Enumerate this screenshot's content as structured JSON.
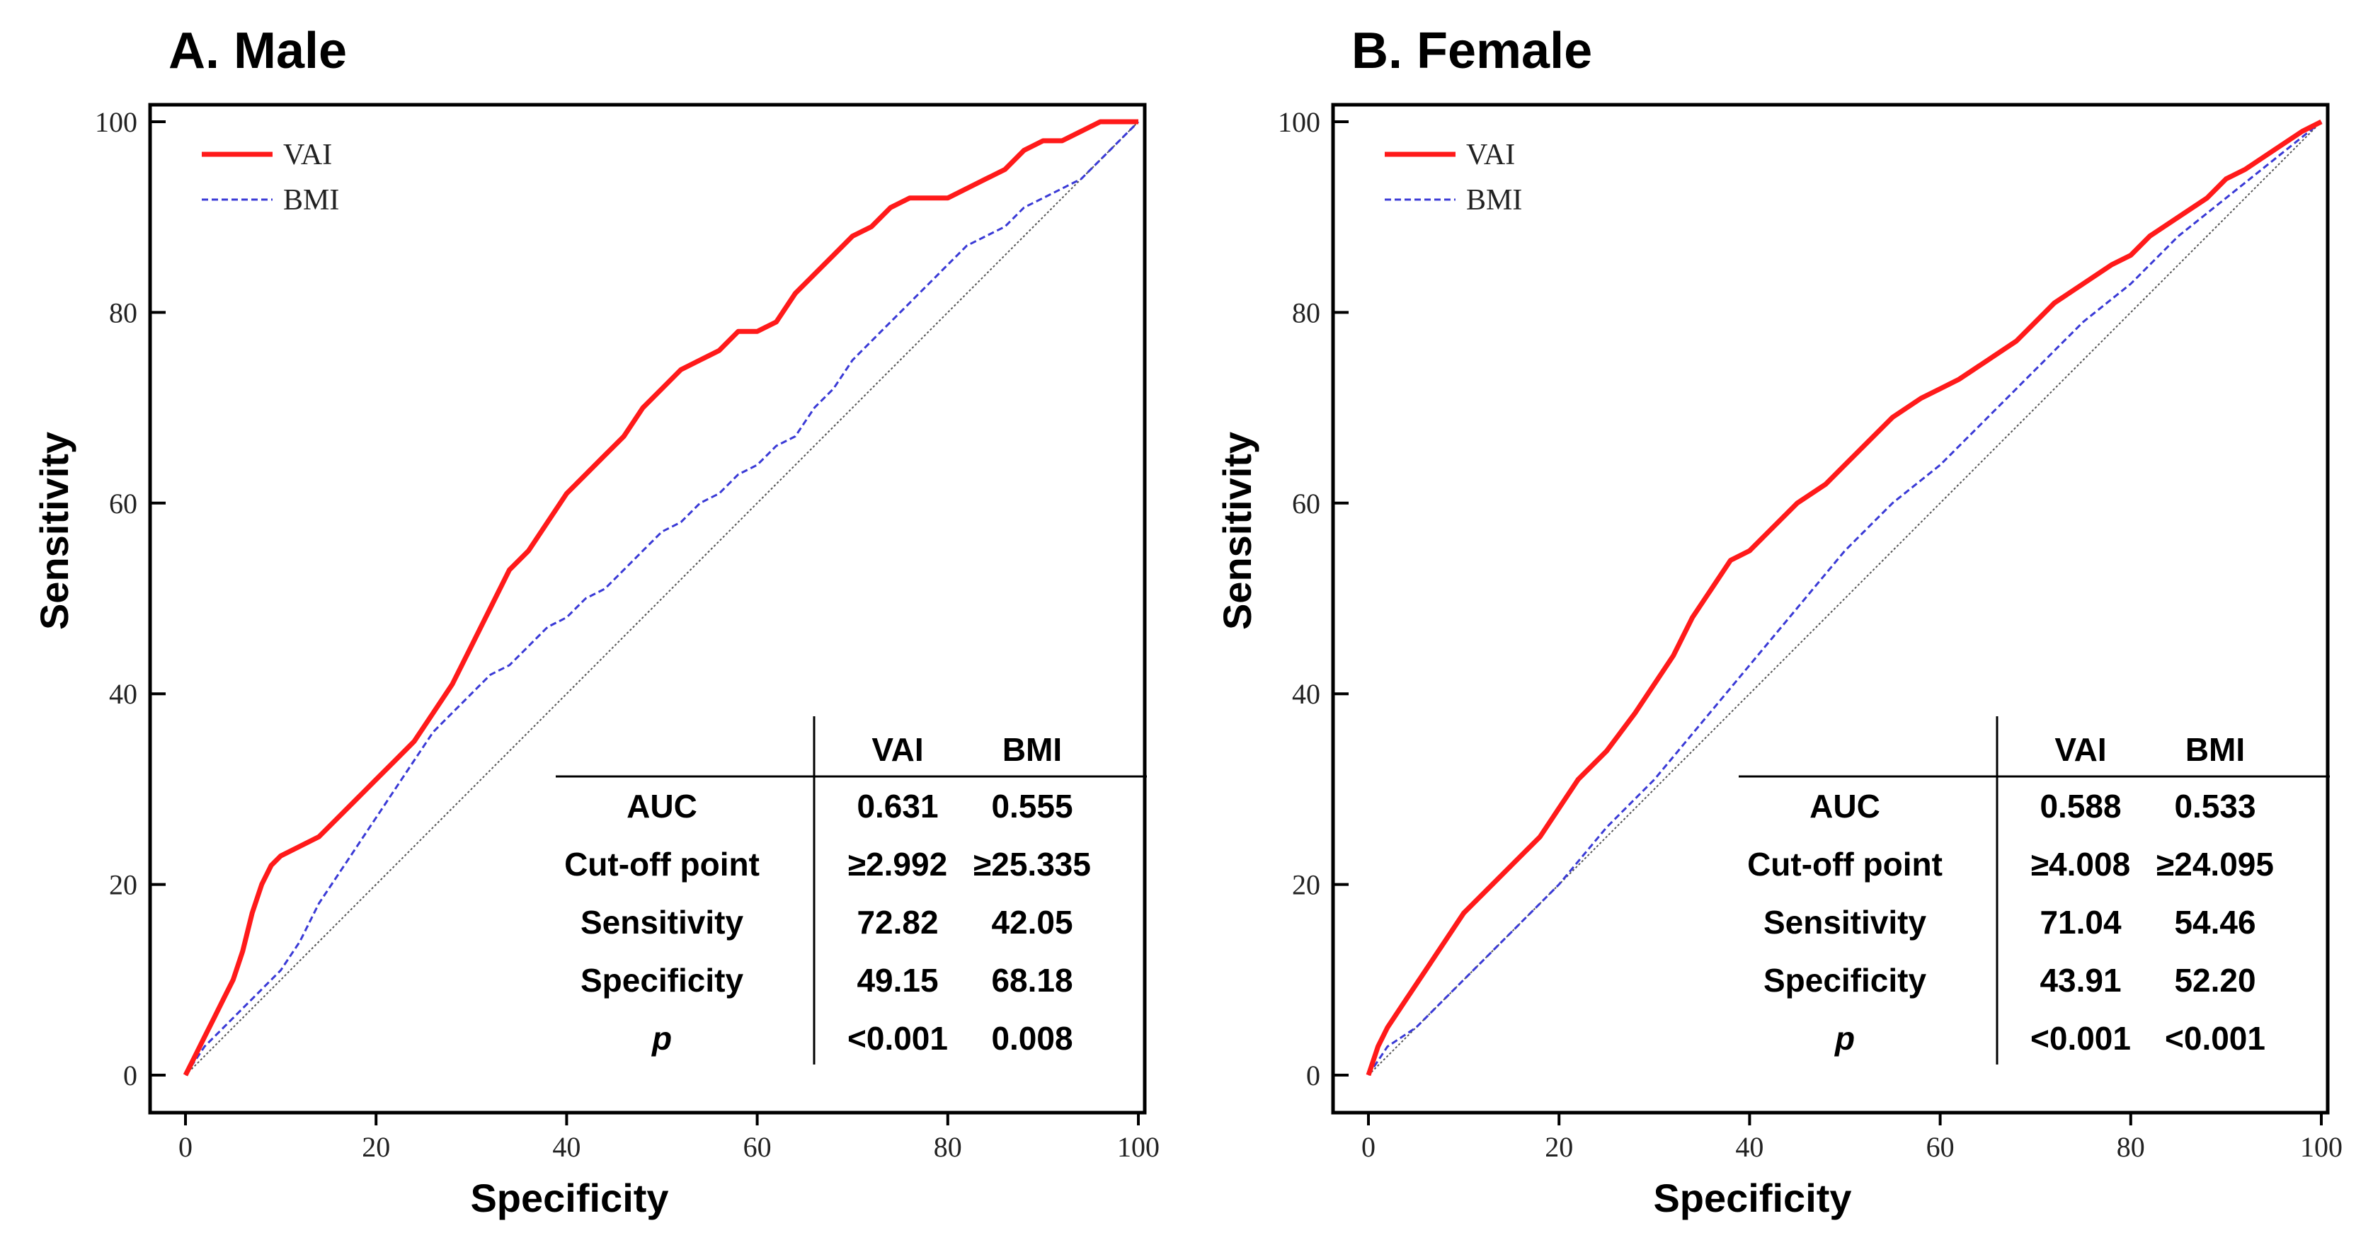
{
  "chart_data": [
    {
      "type": "line",
      "panel_label": "A. Male",
      "xlabel": "Specificity",
      "ylabel": "Sensitivity",
      "xlim": [
        0,
        100
      ],
      "ylim": [
        0,
        100
      ],
      "x_ticks": [
        "0",
        "20",
        "40",
        "60",
        "80",
        "100"
      ],
      "y_ticks": [
        "0",
        "20",
        "40",
        "60",
        "80",
        "100"
      ],
      "grid": false,
      "legend_position": "top-left",
      "reference_line": {
        "name": "chance",
        "x": [
          0,
          100
        ],
        "y": [
          0,
          100
        ]
      },
      "series": [
        {
          "name": "VAI",
          "color": "#ff1a1a",
          "style": "solid",
          "x": [
            0,
            1,
            2,
            3,
            4,
            5,
            6,
            7,
            8,
            9,
            10,
            12,
            14,
            16,
            18,
            20,
            22,
            24,
            26,
            28,
            30,
            32,
            34,
            36,
            38,
            40,
            42,
            44,
            46,
            48,
            50,
            52,
            54,
            56,
            58,
            60,
            62,
            64,
            66,
            68,
            70,
            72,
            74,
            76,
            78,
            80,
            82,
            84,
            86,
            88,
            90,
            92,
            94,
            96,
            98,
            100
          ],
          "y": [
            0,
            2,
            4,
            6,
            8,
            10,
            13,
            17,
            20,
            22,
            23,
            24,
            25,
            27,
            29,
            31,
            33,
            35,
            38,
            41,
            45,
            49,
            53,
            55,
            58,
            61,
            63,
            65,
            67,
            70,
            72,
            74,
            75,
            76,
            78,
            78,
            79,
            82,
            84,
            86,
            88,
            89,
            91,
            92,
            92,
            92,
            93,
            94,
            95,
            97,
            98,
            98,
            99,
            100,
            100,
            100
          ]
        },
        {
          "name": "BMI",
          "color": "#3a3ad6",
          "style": "dashed",
          "x": [
            0,
            2,
            4,
            6,
            8,
            10,
            12,
            14,
            16,
            18,
            20,
            22,
            24,
            26,
            28,
            30,
            32,
            34,
            36,
            38,
            40,
            42,
            44,
            46,
            48,
            50,
            52,
            54,
            56,
            58,
            60,
            62,
            64,
            66,
            68,
            70,
            72,
            74,
            76,
            78,
            80,
            82,
            84,
            86,
            88,
            90,
            92,
            94,
            96,
            98,
            100
          ],
          "y": [
            0,
            3,
            5,
            7,
            9,
            11,
            14,
            18,
            21,
            24,
            27,
            30,
            33,
            36,
            38,
            40,
            42,
            43,
            45,
            47,
            48,
            50,
            51,
            53,
            55,
            57,
            58,
            60,
            61,
            63,
            64,
            66,
            67,
            70,
            72,
            75,
            77,
            79,
            81,
            83,
            85,
            87,
            88,
            89,
            91,
            92,
            93,
            94,
            96,
            98,
            100
          ]
        }
      ],
      "stats_table": {
        "columns": [
          "",
          "VAI",
          "BMI"
        ],
        "rows": [
          {
            "label": "AUC",
            "vai": "0.631",
            "bmi": "0.555"
          },
          {
            "label": "Cut-off point",
            "vai": "≥2.992",
            "bmi": "≥25.335"
          },
          {
            "label": "Sensitivity",
            "vai": "72.82",
            "bmi": "42.05"
          },
          {
            "label": "Specificity",
            "vai": "49.15",
            "bmi": "68.18"
          },
          {
            "label": "p",
            "vai": "<0.001",
            "bmi": "0.008"
          }
        ]
      }
    },
    {
      "type": "line",
      "panel_label": "B. Female",
      "xlabel": "Specificity",
      "ylabel": "Sensitivity",
      "xlim": [
        0,
        100
      ],
      "ylim": [
        0,
        100
      ],
      "x_ticks": [
        "0",
        "20",
        "40",
        "60",
        "80",
        "100"
      ],
      "y_ticks": [
        "0",
        "20",
        "40",
        "60",
        "80",
        "100"
      ],
      "grid": false,
      "legend_position": "top-left",
      "reference_line": {
        "name": "chance",
        "x": [
          0,
          100
        ],
        "y": [
          0,
          100
        ]
      },
      "series": [
        {
          "name": "VAI",
          "color": "#ff1a1a",
          "style": "solid",
          "x": [
            0,
            1,
            2,
            4,
            6,
            8,
            10,
            12,
            15,
            18,
            20,
            22,
            25,
            28,
            30,
            32,
            34,
            36,
            38,
            40,
            42,
            45,
            48,
            50,
            52,
            55,
            58,
            60,
            62,
            65,
            68,
            70,
            72,
            75,
            78,
            80,
            82,
            85,
            88,
            90,
            92,
            95,
            98,
            100
          ],
          "y": [
            0,
            3,
            5,
            8,
            11,
            14,
            17,
            19,
            22,
            25,
            28,
            31,
            34,
            38,
            41,
            44,
            48,
            51,
            54,
            55,
            57,
            60,
            62,
            64,
            66,
            69,
            71,
            72,
            73,
            75,
            77,
            79,
            81,
            83,
            85,
            86,
            88,
            90,
            92,
            94,
            95,
            97,
            99,
            100
          ]
        },
        {
          "name": "BMI",
          "color": "#3a3ad6",
          "style": "dashed",
          "x": [
            0,
            2,
            5,
            8,
            10,
            15,
            20,
            25,
            30,
            35,
            40,
            45,
            50,
            55,
            60,
            65,
            70,
            75,
            80,
            85,
            90,
            95,
            100
          ],
          "y": [
            0,
            3,
            5,
            8,
            10,
            15,
            20,
            26,
            31,
            37,
            43,
            49,
            55,
            60,
            64,
            69,
            74,
            79,
            83,
            88,
            92,
            96,
            100
          ]
        }
      ],
      "stats_table": {
        "columns": [
          "",
          "VAI",
          "BMI"
        ],
        "rows": [
          {
            "label": "AUC",
            "vai": "0.588",
            "bmi": "0.533"
          },
          {
            "label": "Cut-off point",
            "vai": "≥4.008",
            "bmi": "≥24.095"
          },
          {
            "label": "Sensitivity",
            "vai": "71.04",
            "bmi": "54.46"
          },
          {
            "label": "Specificity",
            "vai": "43.91",
            "bmi": "52.20"
          },
          {
            "label": "p",
            "vai": "<0.001",
            "bmi": "<0.001"
          }
        ]
      }
    }
  ]
}
